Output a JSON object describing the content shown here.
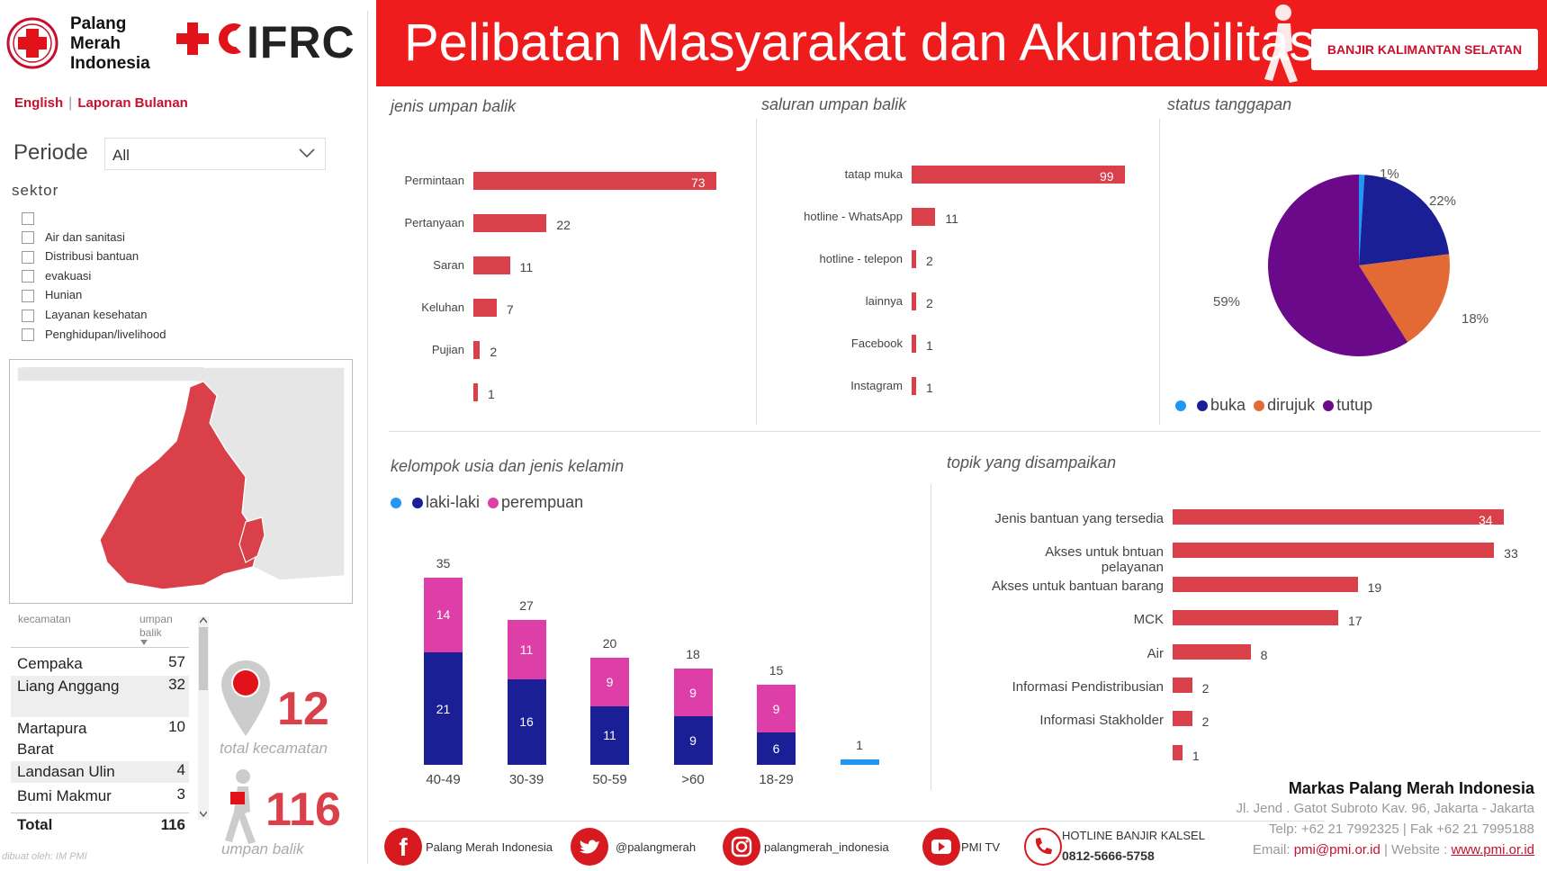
{
  "brand": {
    "prc_name_lines": [
      "Palang",
      "Merah",
      "Indonesia"
    ],
    "ifrc_text": "IFRC"
  },
  "nav": {
    "english": "English",
    "separator": "|",
    "laporan": "Laporan Bulanan"
  },
  "filters": {
    "periode_label": "Periode",
    "periode_value": "All",
    "sektor_label": "sektor",
    "sektor_options": [
      "",
      "Air dan sanitasi",
      "Distribusi bantuan",
      "evakuasi",
      "Hunian",
      "Layanan kesehatan",
      "Penghidupan/livelihood"
    ]
  },
  "table": {
    "col_kecamatan": "kecamatan",
    "col_umpan": "umpan balik",
    "rows": [
      {
        "name": "Cempaka",
        "value": "57"
      },
      {
        "name": "Liang Anggang",
        "value": "32"
      },
      {
        "name": "Martapura Barat",
        "value": "10"
      },
      {
        "name": "Landasan Ulin",
        "value": "4"
      },
      {
        "name": "Bumi Makmur",
        "value": "3"
      }
    ],
    "total_label": "Total",
    "total_value": "116"
  },
  "kpi": {
    "kecamatan_count": "12",
    "kecamatan_label": "total kecamatan",
    "umpan_count": "116",
    "umpan_label": "umpan balik"
  },
  "credit": "dibuat oleh: IM PMI",
  "header": {
    "title": "Pelibatan Masyarakat dan Akuntabilitas",
    "region_button": "BANJIR KALIMANTAN SELATAN"
  },
  "colors": {
    "header_red": "#ee1c1c",
    "bar_red": "#d9404a",
    "navy": "#1a1f96",
    "pink": "#de3ea8",
    "orange": "#e36a34",
    "purple": "#6a0a8a",
    "light_blue": "#2196f3"
  },
  "chart_data": [
    {
      "type": "bar",
      "title": "jenis umpan balik",
      "categories": [
        "Permintaan",
        "Pertanyaan",
        "Saran",
        "Keluhan",
        "Pujian",
        ""
      ],
      "values": [
        73,
        22,
        11,
        7,
        2,
        1
      ]
    },
    {
      "type": "bar",
      "title": "saluran umpan balik",
      "categories": [
        "tatap muka",
        "hotline - WhatsApp",
        "hotline - telepon",
        "lainnya",
        "Facebook",
        "Instagram"
      ],
      "values": [
        99,
        11,
        2,
        2,
        1,
        1
      ]
    },
    {
      "type": "pie",
      "title": "status tanggapan",
      "slices": [
        {
          "name": "",
          "value": 1,
          "label": "1%",
          "color": "#2196f3"
        },
        {
          "name": "buka",
          "value": 22,
          "label": "22%",
          "color": "#1a1f96"
        },
        {
          "name": "dirujuk",
          "value": 18,
          "label": "18%",
          "color": "#e36a34"
        },
        {
          "name": "tutup",
          "value": 59,
          "label": "59%",
          "color": "#6a0a8a"
        }
      ],
      "legend": [
        "",
        "buka",
        "dirujuk",
        "tutup"
      ]
    },
    {
      "type": "bar",
      "stacked": true,
      "title": "kelompok usia dan jenis kelamin",
      "categories": [
        "40-49",
        "30-39",
        "50-59",
        ">60",
        "18-29",
        ""
      ],
      "series": [
        {
          "name": "",
          "values": [
            0,
            0,
            0,
            0,
            0,
            1
          ]
        },
        {
          "name": "laki-laki",
          "values": [
            21,
            16,
            11,
            9,
            6,
            0
          ]
        },
        {
          "name": "perempuan",
          "values": [
            14,
            11,
            9,
            9,
            9,
            0
          ]
        }
      ],
      "totals": [
        35,
        27,
        20,
        18,
        15,
        1
      ]
    },
    {
      "type": "bar",
      "title": "topik yang disampaikan",
      "categories": [
        "Jenis bantuan yang tersedia",
        "Akses untuk bntuan pelayanan",
        "Akses untuk bantuan barang",
        "MCK",
        "Air",
        "Informasi Pendistribusian",
        "Informasi Stakholder",
        ""
      ],
      "values": [
        34,
        33,
        19,
        17,
        8,
        2,
        2,
        1
      ]
    }
  ],
  "footer": {
    "facebook": "Palang Merah Indonesia",
    "twitter": "@palangmerah",
    "instagram": "palangmerah_indonesia",
    "youtube": "PMI TV",
    "hotline_title": "HOTLINE BANJIR KALSEL",
    "hotline_number": "0812-5666-5758",
    "hq_title": "Markas Palang Merah Indonesia",
    "address": "Jl. Jend . Gatot Subroto Kav. 96, Jakarta - Jakarta",
    "phone": "Telp: +62 21 7992325 | Fak +62 21 7995188",
    "email_label": "Email:",
    "email": "pmi@pmi.or.id",
    "website_label": "| Website :",
    "website": "www.pmi.or.id"
  }
}
